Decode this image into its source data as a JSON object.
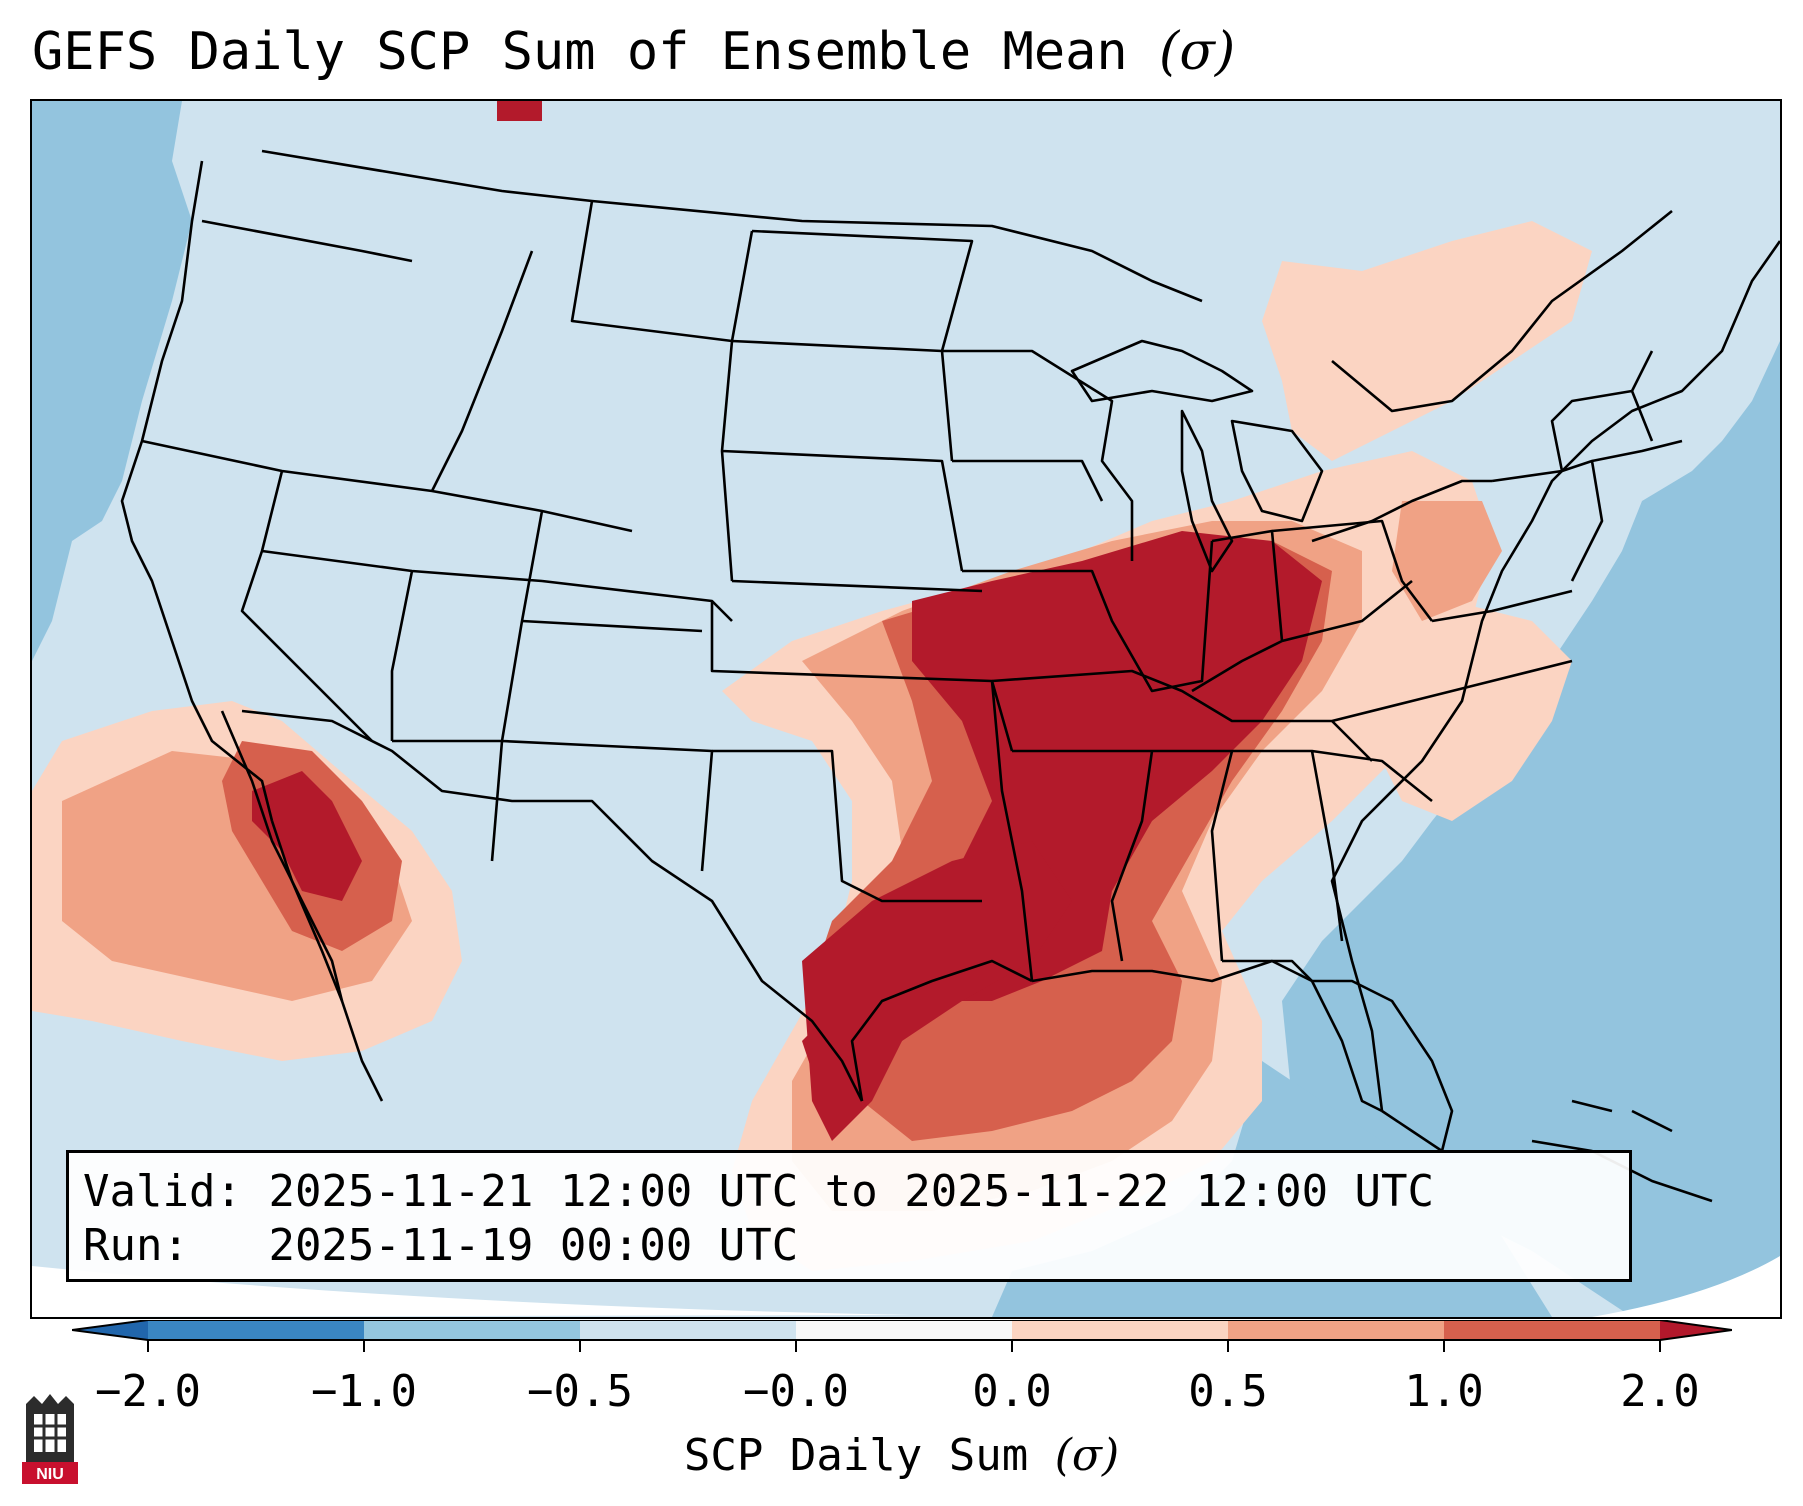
{
  "title": "GEFS Daily SCP Sum of Ensemble Mean",
  "title_symbol": "(σ)",
  "info": {
    "valid_label": "Valid:",
    "valid_value": "2025-11-21 12:00 UTC to 2025-11-22 12:00 UTC",
    "run_label": "Run:",
    "run_value": "2025-11-19 00:00 UTC"
  },
  "colorbar": {
    "label": "SCP Daily Sum",
    "label_symbol": "(σ)",
    "ticks": [
      "−2.0",
      "−1.0",
      "−0.5",
      "−0.0",
      "0.0",
      "0.5",
      "1.0",
      "2.0"
    ],
    "bins": [
      {
        "range": "-2.0 to -1.0",
        "color": "#3a86c2"
      },
      {
        "range": "-1.0 to -0.5",
        "color": "#94c6de"
      },
      {
        "range": "-0.5 to -0.0",
        "color": "#d0e3ee"
      },
      {
        "range": "-0.0 to 0.0",
        "color": "#f7f7f7"
      },
      {
        "range": "0.0 to 0.5",
        "color": "#fbd4c2"
      },
      {
        "range": "0.5 to 1.0",
        "color": "#f0a285"
      },
      {
        "range": "1.0 to 2.0",
        "color": "#d6604d"
      }
    ],
    "under_color": "#2166ac",
    "over_color": "#b2182b"
  },
  "map_colors": {
    "land_background": "#cfe3ef",
    "ocean_negative": "#93c4de",
    "light_positive": "#fbd4c2",
    "moderate_positive": "#f0a285",
    "strong_positive": "#d6604d",
    "extreme_positive": "#b31a2b"
  },
  "logo_text": "NIU"
}
